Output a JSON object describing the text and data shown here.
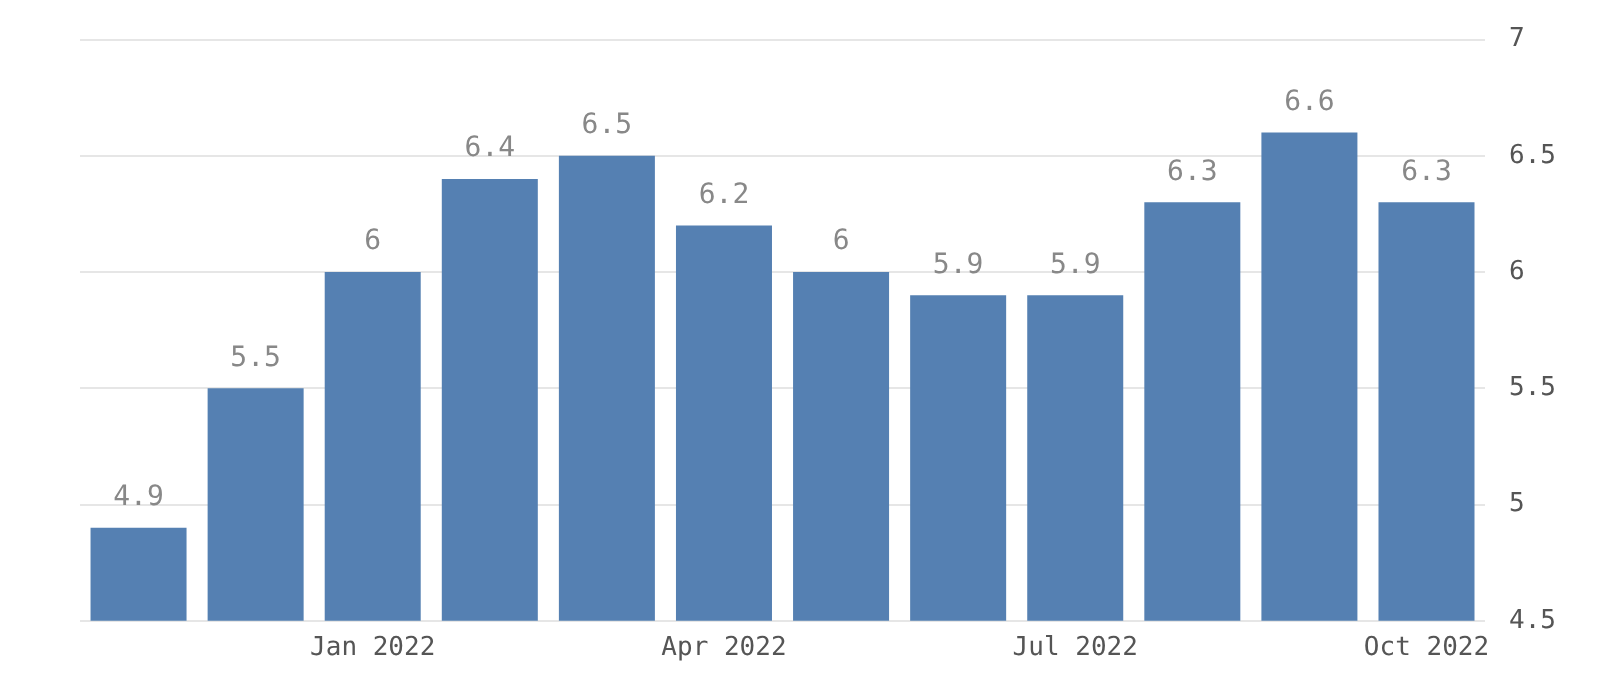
{
  "chart_data": {
    "type": "bar",
    "categories": [
      null,
      null,
      "Jan 2022",
      null,
      null,
      "Apr 2022",
      null,
      null,
      "Jul 2022",
      null,
      null,
      "Oct 2022"
    ],
    "values": [
      4.9,
      5.5,
      6,
      6.4,
      6.5,
      6.2,
      6,
      5.9,
      5.9,
      6.3,
      6.6,
      6.3
    ],
    "color": "#5580b2",
    "ylim": [
      4.5,
      7
    ],
    "yticks": [
      4.5,
      5,
      5.5,
      6,
      6.5,
      7
    ],
    "grid": "y",
    "data_labels": true,
    "legend": false
  }
}
